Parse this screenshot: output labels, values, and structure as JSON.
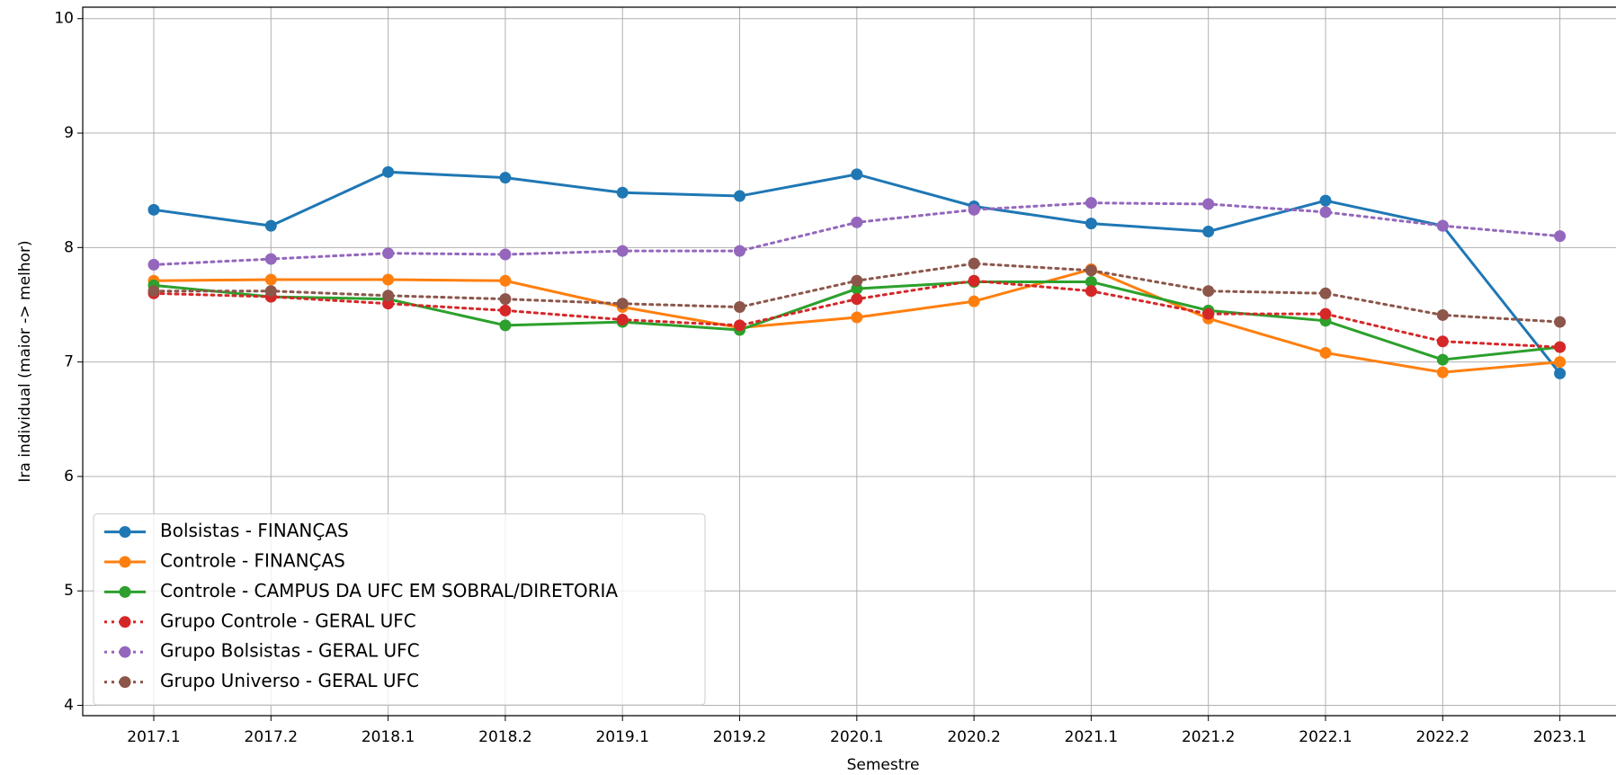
{
  "chart_data": {
    "type": "line",
    "xlabel": "Semestre",
    "ylabel": "Ira individual (maior -> melhor)",
    "categories": [
      "2017.1",
      "2017.2",
      "2018.1",
      "2018.2",
      "2019.1",
      "2019.2",
      "2020.1",
      "2020.2",
      "2021.1",
      "2021.2",
      "2022.1",
      "2022.2",
      "2023.1"
    ],
    "ylim": [
      3.91,
      10.1
    ],
    "yticks": [
      4,
      5,
      6,
      7,
      8,
      9,
      10
    ],
    "grid": true,
    "legend": "lower left",
    "series": [
      {
        "name": "Bolsistas - FINANÇAS",
        "color": "#1f77b4",
        "linestyle": "solid",
        "values": [
          8.33,
          8.19,
          8.66,
          8.61,
          8.48,
          8.45,
          8.64,
          8.36,
          8.21,
          8.14,
          8.41,
          8.19,
          6.9
        ]
      },
      {
        "name": "Controle - FINANÇAS",
        "color": "#ff7f0e",
        "linestyle": "solid",
        "values": [
          7.71,
          7.72,
          7.72,
          7.71,
          7.48,
          7.3,
          7.39,
          7.53,
          7.81,
          7.38,
          7.08,
          6.91,
          7.0
        ]
      },
      {
        "name": "Controle - CAMPUS DA UFC EM SOBRAL/DIRETORIA",
        "color": "#2ca02c",
        "linestyle": "solid",
        "values": [
          7.67,
          7.57,
          7.55,
          7.32,
          7.35,
          7.28,
          7.64,
          7.7,
          7.7,
          7.45,
          7.36,
          7.02,
          7.13
        ]
      },
      {
        "name": "Grupo Controle - GERAL UFC",
        "color": "#d62728",
        "linestyle": "dotted",
        "values": [
          7.6,
          7.57,
          7.51,
          7.45,
          7.37,
          7.32,
          7.55,
          7.71,
          7.62,
          7.42,
          7.42,
          7.18,
          7.13
        ]
      },
      {
        "name": "Grupo Bolsistas - GERAL UFC",
        "color": "#9467bd",
        "linestyle": "dotted",
        "values": [
          7.85,
          7.9,
          7.95,
          7.94,
          7.97,
          7.97,
          8.22,
          8.33,
          8.39,
          8.38,
          8.31,
          8.19,
          8.1
        ]
      },
      {
        "name": "Grupo Universo - GERAL UFC",
        "color": "#8c564b",
        "linestyle": "dotted",
        "values": [
          7.62,
          7.62,
          7.58,
          7.55,
          7.51,
          7.48,
          7.71,
          7.86,
          7.8,
          7.62,
          7.6,
          7.41,
          7.35
        ]
      }
    ]
  }
}
